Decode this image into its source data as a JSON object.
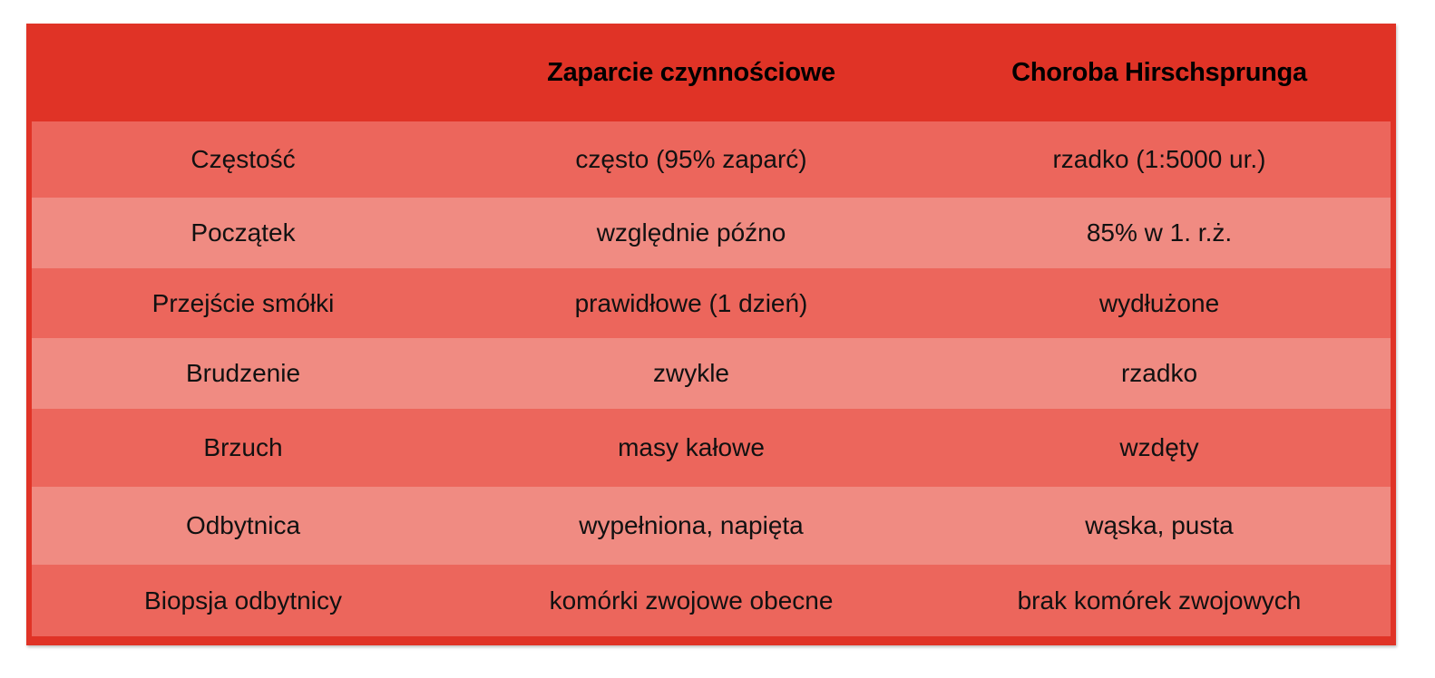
{
  "colors": {
    "header_bg": "#e03326",
    "row_odd": "#ec665c",
    "row_even": "#f08b82"
  },
  "table": {
    "headers": [
      "",
      "Zaparcie czynnościowe",
      "Choroba Hirschsprunga"
    ],
    "rows": [
      [
        "Częstość",
        "często (95% zaparć)",
        "rzadko (1:5000 ur.)"
      ],
      [
        "Początek",
        "względnie późno",
        "85% w 1. r.ż."
      ],
      [
        "Przejście smółki",
        "prawidłowe (1 dzień)",
        "wydłużone"
      ],
      [
        "Brudzenie",
        "zwykle",
        "rzadko"
      ],
      [
        "Brzuch",
        "masy kałowe",
        "wzdęty"
      ],
      [
        "Odbytnica",
        "wypełniona, napięta",
        "wąska, pusta"
      ],
      [
        "Biopsja odbytnicy",
        "komórki zwojowe obecne",
        "brak komórek zwojowych"
      ]
    ]
  }
}
